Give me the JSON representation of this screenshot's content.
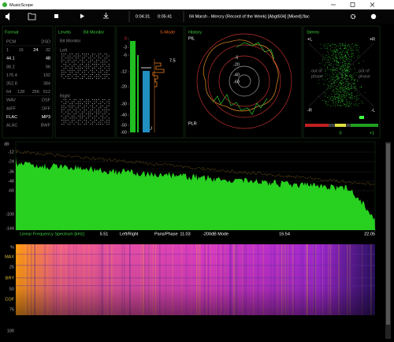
{
  "window": {
    "title": "MusicScope"
  },
  "toolbar": {
    "elapsed": "0:04:31",
    "total": "0:05:41",
    "track": "04 Marsh - Mercry (Record of the Week) [Abgt604] [Mixed].flac"
  },
  "format": {
    "title": "Format",
    "rows": [
      [
        "PCM",
        "DSD"
      ],
      [
        "1",
        "16",
        "24",
        "32"
      ],
      [
        "44.1",
        "48"
      ],
      [
        "88.2",
        "96"
      ],
      [
        "176.4",
        "192"
      ],
      [
        "352.8",
        "384"
      ],
      [
        "64",
        "128",
        "256",
        "512"
      ],
      [
        "WAV",
        "DSF"
      ],
      [
        "AIFF",
        "DFF"
      ],
      [
        "FLAC",
        "MP3"
      ],
      [
        "ALAC",
        "BWF"
      ]
    ]
  },
  "levels": {
    "title": "Levels",
    "mode": "Bit Monitor",
    "subtitle": "Bit Monitor",
    "left": "Left",
    "right": "Right"
  },
  "meter": {
    "mode": "S-Mode",
    "scale": [
      "0",
      "-3",
      "-6",
      "-12",
      "-20",
      "-30",
      "-40",
      "-50",
      "-60"
    ],
    "readout": "7.5",
    "unit": "LU"
  },
  "history": {
    "title": "History",
    "top": "PIL",
    "bottom": "PLR",
    "rings": [
      "-6",
      "-20",
      "-40",
      "-60"
    ]
  },
  "stereo": {
    "title": "Stereo",
    "corners": [
      "+L",
      "+R",
      "-R",
      "-L"
    ],
    "phase_left": [
      "out of",
      "phase"
    ],
    "phase_right": [
      "out of",
      "phase"
    ],
    "balance": [
      "0",
      "+1"
    ]
  },
  "spectrum": {
    "unit": "dB",
    "ticks": [
      "-12",
      "-24",
      "-36",
      "-48",
      "-60",
      "-100",
      "-144"
    ],
    "footer": [
      "Linear Frequency Spectrum [kHz]",
      "5.51",
      "Left/Right",
      "Pans/Phase",
      "11.03",
      "-200dB Mode",
      "16.54",
      "22.05"
    ]
  },
  "spectrogram": {
    "labels": [
      "%",
      "MAX",
      "25",
      "BRY",
      "50",
      "COF",
      "75",
      "100"
    ]
  }
}
